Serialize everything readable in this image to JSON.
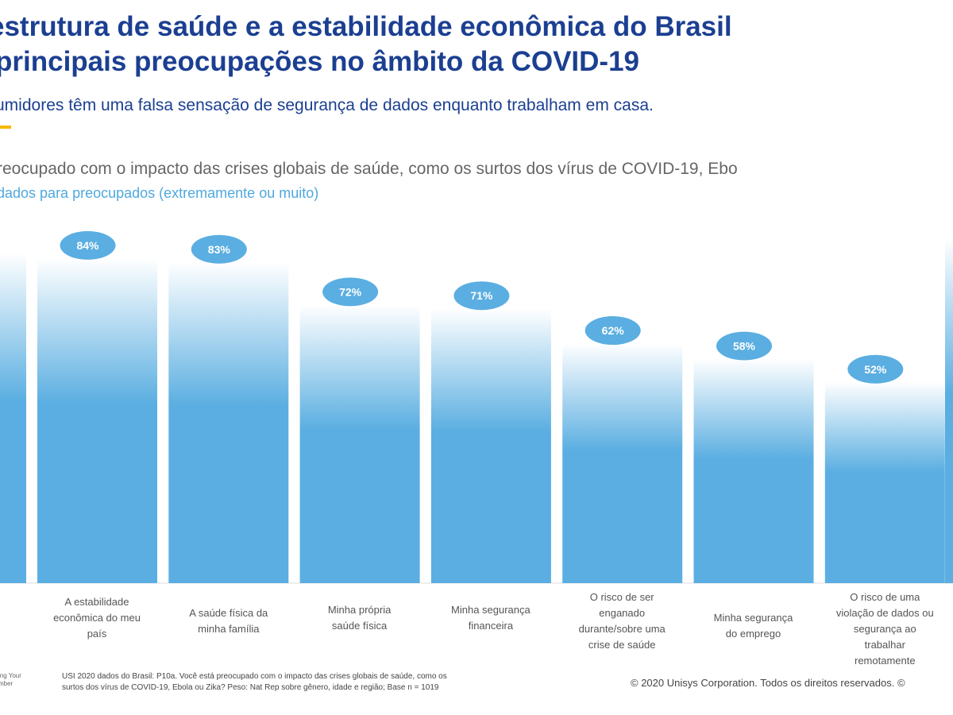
{
  "header": {
    "title_line1": "estrutura de saúde e a estabilidade econômica do Brasil",
    "title_line2": "principais preocupações no âmbito da COVID-19",
    "subtitle": "umidores têm uma falsa sensação de segurança de dados enquanto trabalham em casa.",
    "accent_color": "#f5b800"
  },
  "chart_data": {
    "type": "bar",
    "title": "reocupado com o impacto das crises globais de saúde, como os surtos dos vírus de COVID-19, Ebo",
    "subtitle": "dados para preocupados (extremamente ou muito)",
    "categories": [
      "A estabilidade econômica do meu país",
      "A saúde física da minha família",
      "Minha própria saúde física",
      "Minha segurança financeira",
      "O risco de ser enganado durante/sobre uma crise de saúde",
      "Minha segurança do emprego",
      "O risco de uma violação de dados ou segurança ao trabalhar remotamente"
    ],
    "values": [
      84,
      83,
      72,
      71,
      62,
      58,
      52
    ],
    "data_labels": [
      "84%",
      "83%",
      "72%",
      "71%",
      "62%",
      "58%",
      "52%"
    ],
    "unit": "%",
    "ylim": [
      0,
      100
    ],
    "grid": false,
    "bar_color": "#5aaee1",
    "label_bubble_color": "#5aaee1"
  },
  "footer": {
    "footnote_line1": "USI 2020 dados do Brasil: P10a. Você está preocupado com o impacto das crises globais de saúde, como os",
    "footnote_line2": "surtos dos vírus de COVID-19, Ebola ou Zika? Peso: Nat Rep sobre gênero, idade e região; Base n = 1019",
    "copyright": "© 2020 Unisys Corporation. Todos os direitos reservados. ©"
  }
}
